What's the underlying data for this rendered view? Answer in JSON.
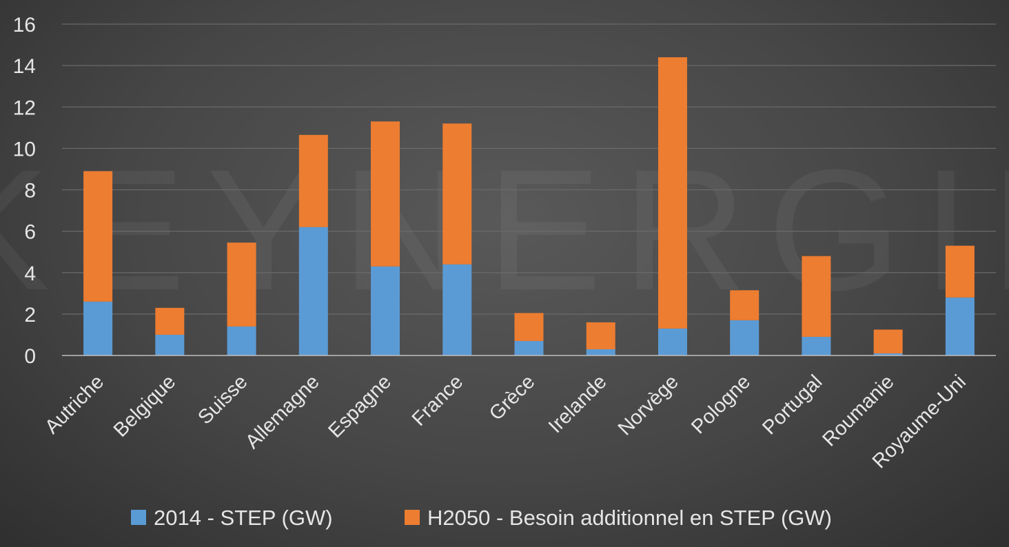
{
  "watermark": "KEYNERGIE",
  "colors": {
    "series_2014": "#5b9bd5",
    "series_h2050": "#ed7d31",
    "grid": "#6a6a6a",
    "axis": "#bfbfbf",
    "text": "#e6e6e6"
  },
  "chart_data": {
    "type": "bar",
    "stacked": true,
    "categories": [
      "Autriche",
      "Belgique",
      "Suisse",
      "Allemagne",
      "Espagne",
      "France",
      "Grèce",
      "Irelande",
      "Norvège",
      "Pologne",
      "Portugal",
      "Roumanie",
      "Royaume-Uni"
    ],
    "series": [
      {
        "name": "2014 - STEP (GW)",
        "color": "#5b9bd5",
        "values": [
          2.6,
          1.0,
          1.4,
          6.2,
          4.3,
          4.4,
          0.7,
          0.3,
          1.3,
          1.7,
          0.9,
          0.1,
          2.8
        ]
      },
      {
        "name": "H2050 - Besoin additionnel en STEP (GW)",
        "color": "#ed7d31",
        "values": [
          6.3,
          1.3,
          4.05,
          4.45,
          7.0,
          6.8,
          1.35,
          1.3,
          13.1,
          1.45,
          3.9,
          1.15,
          2.5
        ]
      }
    ],
    "yticks": [
      0,
      2,
      4,
      6,
      8,
      10,
      12,
      14,
      16
    ],
    "ylim": [
      0,
      16
    ],
    "grid": true,
    "legend_position": "bottom",
    "title": "",
    "xlabel": "",
    "ylabel": ""
  }
}
